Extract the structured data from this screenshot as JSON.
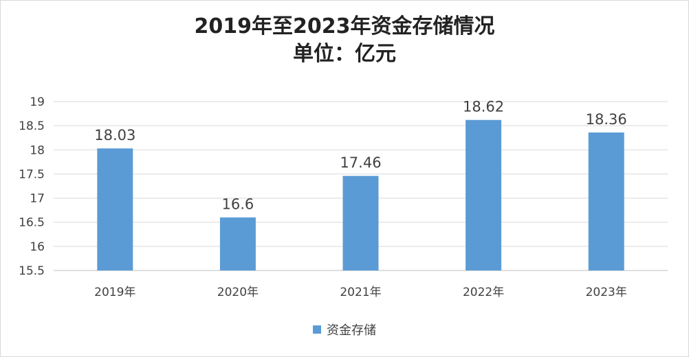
{
  "chart_data": {
    "type": "bar",
    "title": "2019年至2023年资金存储情况",
    "subtitle": "单位：亿元",
    "categories": [
      "2019年",
      "2020年",
      "2021年",
      "2022年",
      "2023年"
    ],
    "series": [
      {
        "name": "资金存储",
        "values": [
          18.03,
          16.6,
          17.46,
          18.62,
          18.36
        ],
        "color": "#5b9bd5"
      }
    ],
    "data_labels": [
      "18.03",
      "16.6",
      "17.46",
      "18.62",
      "18.36"
    ],
    "y_ticks": [
      "15.5",
      "16",
      "16.5",
      "17",
      "17.5",
      "18",
      "18.5",
      "19"
    ],
    "ylim": [
      15.5,
      19
    ],
    "xlabel": "",
    "ylabel": "",
    "grid": true,
    "legend_position": "bottom"
  }
}
